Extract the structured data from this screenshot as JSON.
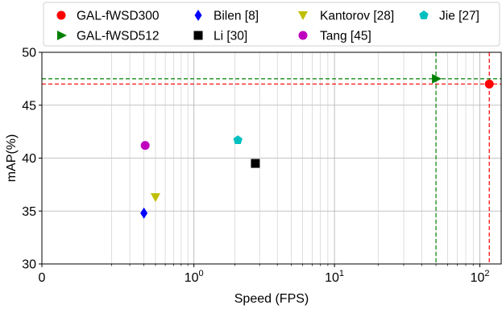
{
  "chart_data": {
    "type": "scatter",
    "xlabel": "Speed (FPS)",
    "ylabel": "mAP(%)",
    "xscale": "symlog",
    "xlim": [
      0,
      140
    ],
    "ylim": [
      30,
      50
    ],
    "linthresh": 0.1,
    "x_ticks": [
      {
        "value": 0,
        "base": "0",
        "exp": ""
      },
      {
        "value": 1,
        "base": "10",
        "exp": "0"
      },
      {
        "value": 10,
        "base": "10",
        "exp": "1"
      },
      {
        "value": 100,
        "base": "10",
        "exp": "2"
      }
    ],
    "y_ticks": [
      30,
      35,
      40,
      45,
      50
    ],
    "grid": true,
    "legend_position": "top",
    "series": [
      {
        "name": "GAL-fWSD300",
        "marker": "circle",
        "color": "#ff0000",
        "x": 116,
        "y": 47.0
      },
      {
        "name": "GAL-fWSD512",
        "marker": "triangle-right",
        "color": "#008000",
        "x": 50,
        "y": 47.5
      },
      {
        "name": "Bilen [8]",
        "marker": "diamond",
        "color": "#0000ff",
        "x": 0.4,
        "y": 34.8
      },
      {
        "name": "Li [30]",
        "marker": "square",
        "color": "#000000",
        "x": 2.8,
        "y": 39.5
      },
      {
        "name": "Kantorov [28]",
        "marker": "triangle-down",
        "color": "#bfbf00",
        "x": 0.5,
        "y": 36.3
      },
      {
        "name": "Tang [45]",
        "marker": "circle",
        "color": "#bf00bf",
        "x": 0.41,
        "y": 41.2
      },
      {
        "name": "Jie  [27]",
        "marker": "pentagon",
        "color": "#00bfbf",
        "x": 2.1,
        "y": 41.7
      }
    ],
    "reference_lines": [
      {
        "orientation": "horizontal",
        "value": 47.0,
        "color": "#ff0000"
      },
      {
        "orientation": "vertical",
        "value": 116,
        "color": "#ff0000"
      },
      {
        "orientation": "horizontal",
        "value": 47.5,
        "color": "#008000"
      },
      {
        "orientation": "vertical",
        "value": 50,
        "color": "#008000"
      }
    ]
  }
}
